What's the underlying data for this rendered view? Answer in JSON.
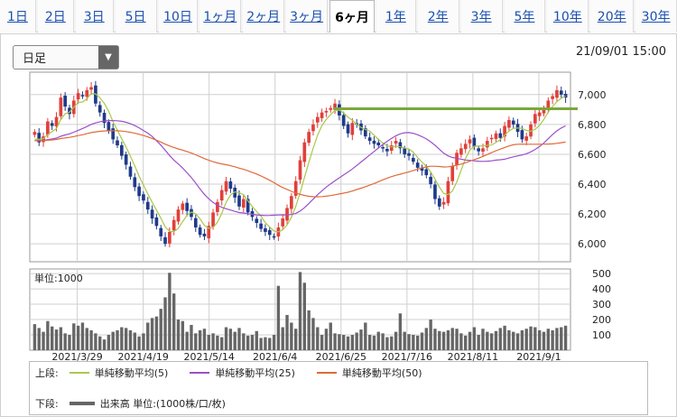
{
  "tabs": [
    "1日",
    "2日",
    "3日",
    "5日",
    "10日",
    "1ヶ月",
    "2ヶ月",
    "3ヶ月",
    "6ヶ月",
    "1年",
    "2年",
    "3年",
    "5年",
    "10年",
    "20年",
    "30年"
  ],
  "active_tab": "6ヶ月",
  "period_select": "日足",
  "timestamp": "21/09/01 15:00",
  "volume_unit_label": "単位:1000",
  "legend": {
    "upper_label": "上段:",
    "ma5": "単純移動平均(5)",
    "ma25": "単純移動平均(25)",
    "ma50": "単純移動平均(50)",
    "lower_label": "下段:",
    "volume": "出来高 単位:(1000株/口/枚)"
  },
  "colors": {
    "up": "#e0403a",
    "down": "#1e3a8a",
    "ma5": "#a8c84a",
    "ma25": "#9b4fc9",
    "ma50": "#e06a3a",
    "resistance": "#7aa83a",
    "volume": "#666666",
    "grid": "#cfcfcf"
  },
  "chart_data": {
    "type": "candlestick",
    "x_labels": [
      "2021/3/29",
      "2021/4/19",
      "2021/5/14",
      "2021/6/4",
      "2021/6/25",
      "2021/7/16",
      "2021/8/11",
      "2021/9/1"
    ],
    "price_axis": {
      "ticks": [
        6000,
        6200,
        6400,
        6600,
        6800,
        7000
      ],
      "range": [
        5880,
        7150
      ]
    },
    "volume_axis": {
      "ticks": [
        100,
        200,
        300,
        400,
        500
      ],
      "range": [
        0,
        530
      ]
    },
    "resistance_level": 6905,
    "close": [
      6750,
      6680,
      6720,
      6820,
      6790,
      6850,
      6980,
      6920,
      6870,
      6960,
      7010,
      6990,
      7030,
      7050,
      6940,
      6880,
      6810,
      6760,
      6700,
      6660,
      6590,
      6530,
      6450,
      6380,
      6320,
      6290,
      6230,
      6170,
      6120,
      6050,
      6000,
      6080,
      6160,
      6230,
      6270,
      6220,
      6180,
      6110,
      6060,
      6050,
      6120,
      6210,
      6280,
      6360,
      6420,
      6370,
      6310,
      6250,
      6300,
      6210,
      6180,
      6140,
      6100,
      6080,
      6060,
      6050,
      6110,
      6170,
      6240,
      6320,
      6420,
      6560,
      6680,
      6750,
      6800,
      6850,
      6880,
      6890,
      6910,
      6940,
      6860,
      6790,
      6740,
      6810,
      6800,
      6760,
      6720,
      6690,
      6670,
      6660,
      6640,
      6620,
      6660,
      6690,
      6640,
      6600,
      6590,
      6550,
      6510,
      6490,
      6460,
      6400,
      6300,
      6250,
      6280,
      6420,
      6520,
      6610,
      6640,
      6670,
      6700,
      6650,
      6620,
      6640,
      6690,
      6710,
      6740,
      6710,
      6790,
      6830,
      6800,
      6750,
      6700,
      6720,
      6800,
      6870,
      6880,
      6900,
      6960,
      6990,
      7030,
      7000,
      6980
    ],
    "volume": [
      170,
      145,
      120,
      190,
      155,
      135,
      150,
      110,
      100,
      175,
      160,
      180,
      145,
      130,
      110,
      90,
      70,
      100,
      120,
      130,
      150,
      145,
      130,
      115,
      90,
      110,
      180,
      210,
      220,
      270,
      345,
      505,
      370,
      200,
      190,
      120,
      165,
      110,
      130,
      140,
      100,
      110,
      95,
      85,
      150,
      140,
      120,
      145,
      110,
      95,
      100,
      125,
      80,
      85,
      80,
      100,
      420,
      150,
      230,
      180,
      140,
      510,
      440,
      260,
      210,
      150,
      100,
      140,
      180,
      110,
      105,
      100,
      90,
      100,
      115,
      135,
      180,
      100,
      95,
      120,
      110,
      85,
      90,
      120,
      240,
      120,
      105,
      100,
      95,
      115,
      145,
      200,
      140,
      125,
      120,
      130,
      145,
      140,
      110,
      95,
      120,
      150,
      100,
      140,
      120,
      110,
      125,
      145,
      160,
      130,
      120,
      110,
      130,
      140,
      155,
      150,
      130,
      120,
      140,
      130,
      145,
      150,
      160
    ]
  }
}
